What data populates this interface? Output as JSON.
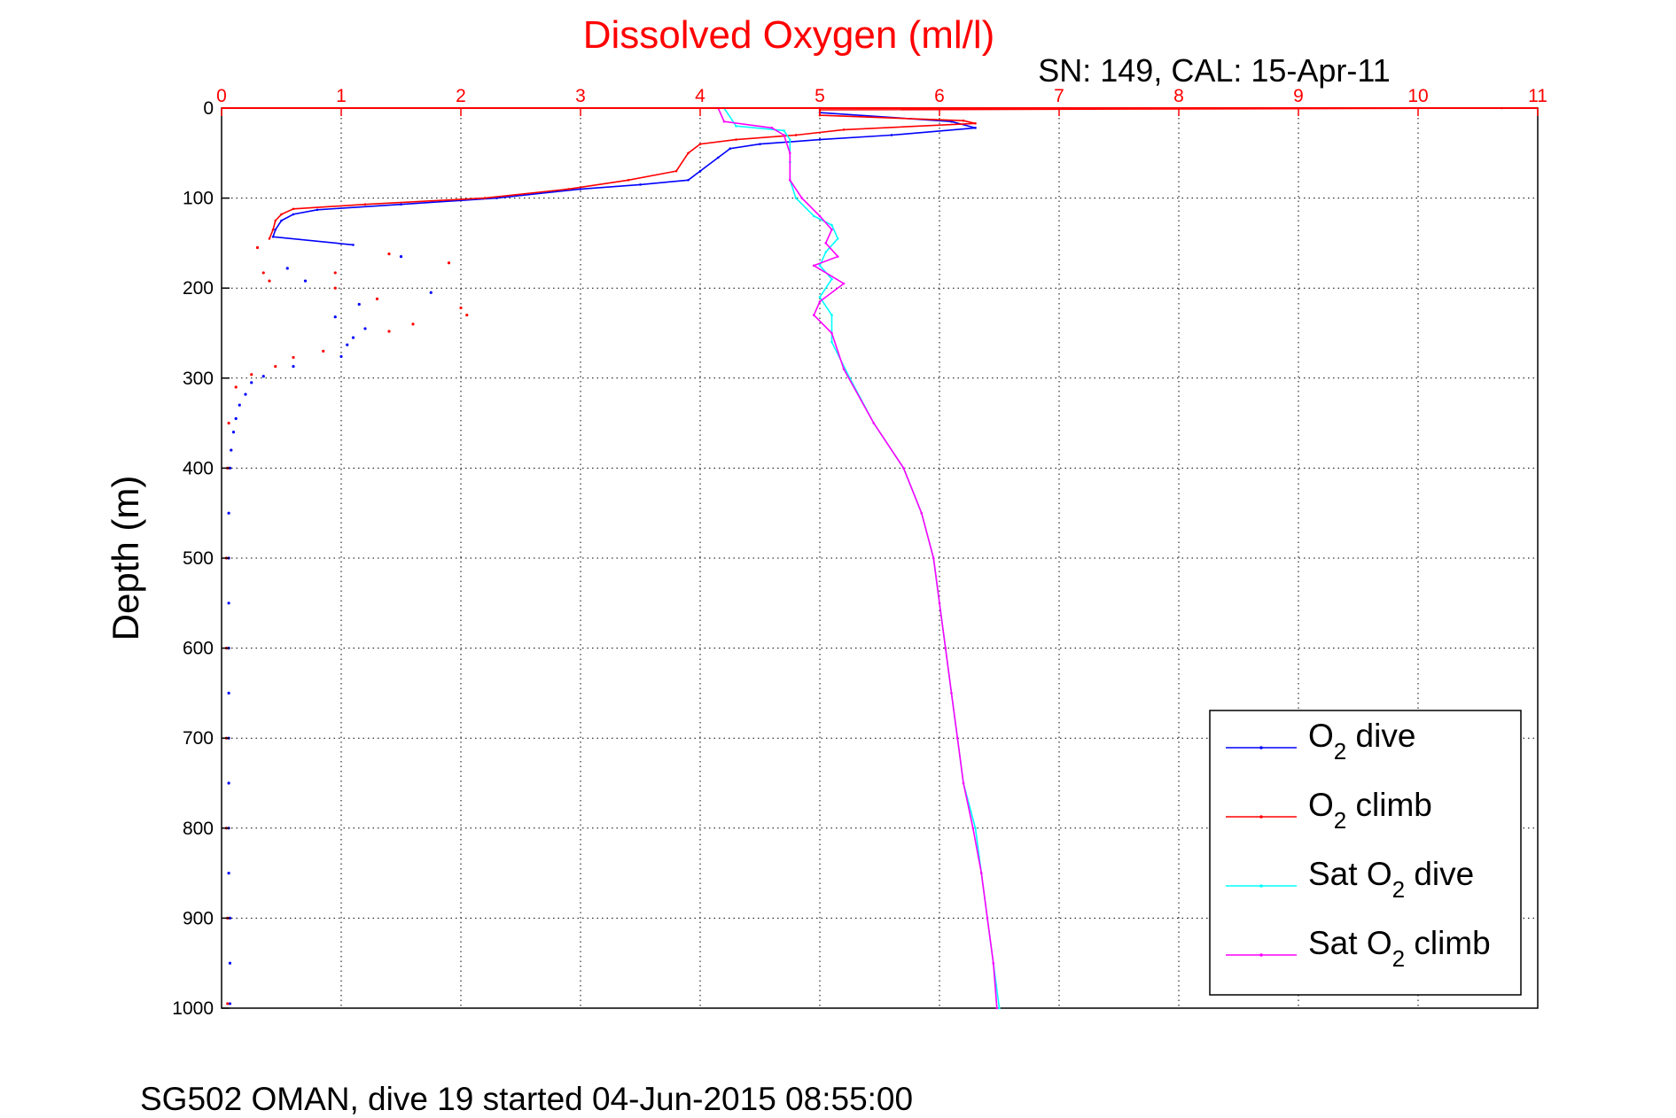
{
  "title": "Dissolved Oxygen (ml/l)",
  "subtitle": "SN: 149, CAL: 15-Apr-11",
  "footer": "SG502 OMAN, dive 19 started 04-Jun-2015 08:55:00",
  "colors": {
    "title": "#ff0000",
    "x_axis": "#ff0000",
    "o2_dive": "#0000ff",
    "o2_climb": "#ff0000",
    "sat_o2_dive": "#00ffff",
    "sat_o2_climb": "#ff00ff"
  },
  "legend": {
    "o2_dive": {
      "main": "O",
      "sub": "2",
      "tail": " dive"
    },
    "o2_climb": {
      "main": "O",
      "sub": "2",
      "tail": " climb"
    },
    "sat_o2_dive": {
      "main": "Sat O",
      "sub": "2",
      "tail": " dive"
    },
    "sat_o2_climb": {
      "main": "Sat O",
      "sub": "2",
      "tail": " climb"
    }
  },
  "chart_data": {
    "type": "line",
    "title": "Dissolved Oxygen (ml/l)",
    "ylabel": "Depth (m)",
    "xlabel": "",
    "xlim": [
      0,
      11
    ],
    "ylim": [
      0,
      1000
    ],
    "y_reversed": true,
    "x_axis_position": "top",
    "grid": true,
    "legend_position": "bottom-right",
    "x_ticks": [
      "0",
      "1",
      "2",
      "3",
      "4",
      "5",
      "6",
      "7",
      "8",
      "9",
      "10",
      "11"
    ],
    "y_ticks": [
      "0",
      "100",
      "200",
      "300",
      "400",
      "500",
      "600",
      "700",
      "800",
      "900",
      "1000"
    ],
    "series": [
      {
        "name": "O2 dive",
        "color": "#0000ff",
        "points": [
          [
            5.0,
            0
          ],
          [
            5.0,
            5
          ],
          [
            6.1,
            15
          ],
          [
            6.3,
            22
          ],
          [
            5.6,
            30
          ],
          [
            5.0,
            35
          ],
          [
            4.5,
            40
          ],
          [
            4.25,
            45
          ],
          [
            4.15,
            55
          ],
          [
            4.0,
            70
          ],
          [
            3.9,
            80
          ],
          [
            3.5,
            85
          ],
          [
            3.0,
            90
          ],
          [
            2.3,
            100
          ],
          [
            1.5,
            107
          ],
          [
            0.8,
            113
          ],
          [
            0.6,
            118
          ],
          [
            0.5,
            125
          ],
          [
            0.45,
            135
          ],
          [
            0.43,
            143
          ],
          [
            1.1,
            152
          ]
        ]
      },
      {
        "name": "O2 climb",
        "color": "#ff0000",
        "points": [
          [
            10.7,
            0
          ],
          [
            5.0,
            2
          ],
          [
            5.0,
            8
          ],
          [
            6.2,
            14
          ],
          [
            6.3,
            17
          ],
          [
            5.2,
            24
          ],
          [
            4.8,
            30
          ],
          [
            4.3,
            35
          ],
          [
            4.0,
            40
          ],
          [
            3.9,
            50
          ],
          [
            3.8,
            70
          ],
          [
            3.4,
            80
          ],
          [
            2.9,
            90
          ],
          [
            2.2,
            100
          ],
          [
            1.2,
            107
          ],
          [
            0.6,
            112
          ],
          [
            0.5,
            118
          ],
          [
            0.45,
            125
          ],
          [
            0.43,
            135
          ],
          [
            0.4,
            145
          ]
        ]
      },
      {
        "name": "Sat O2 dive",
        "color": "#00ffff",
        "points": [
          [
            4.2,
            0
          ],
          [
            4.3,
            20
          ],
          [
            4.7,
            25
          ],
          [
            4.75,
            35
          ],
          [
            4.75,
            60
          ],
          [
            4.75,
            80
          ],
          [
            4.8,
            100
          ],
          [
            4.95,
            120
          ],
          [
            5.1,
            130
          ],
          [
            5.15,
            145
          ],
          [
            5.05,
            160
          ],
          [
            5.0,
            175
          ],
          [
            5.1,
            190
          ],
          [
            5.0,
            210
          ],
          [
            5.1,
            230
          ],
          [
            5.1,
            260
          ],
          [
            5.25,
            300
          ],
          [
            5.45,
            350
          ],
          [
            5.7,
            400
          ],
          [
            5.85,
            450
          ],
          [
            5.95,
            500
          ],
          [
            6.0,
            550
          ],
          [
            6.05,
            600
          ],
          [
            6.1,
            650
          ],
          [
            6.15,
            700
          ],
          [
            6.2,
            750
          ],
          [
            6.3,
            800
          ],
          [
            6.35,
            850
          ],
          [
            6.4,
            900
          ],
          [
            6.45,
            950
          ],
          [
            6.5,
            1000
          ]
        ]
      },
      {
        "name": "Sat O2 climb",
        "color": "#ff00ff",
        "points": [
          [
            4.15,
            0
          ],
          [
            4.2,
            15
          ],
          [
            4.6,
            22
          ],
          [
            4.7,
            30
          ],
          [
            4.75,
            50
          ],
          [
            4.75,
            80
          ],
          [
            4.85,
            100
          ],
          [
            5.0,
            120
          ],
          [
            5.1,
            135
          ],
          [
            5.05,
            150
          ],
          [
            5.15,
            165
          ],
          [
            4.95,
            175
          ],
          [
            5.2,
            195
          ],
          [
            5.0,
            215
          ],
          [
            4.95,
            230
          ],
          [
            5.1,
            250
          ],
          [
            5.2,
            290
          ],
          [
            5.45,
            350
          ],
          [
            5.7,
            400
          ],
          [
            5.85,
            450
          ],
          [
            5.95,
            500
          ],
          [
            6.0,
            550
          ],
          [
            6.05,
            600
          ],
          [
            6.1,
            650
          ],
          [
            6.15,
            700
          ],
          [
            6.2,
            750
          ],
          [
            6.28,
            800
          ],
          [
            6.35,
            850
          ],
          [
            6.4,
            900
          ],
          [
            6.45,
            950
          ],
          [
            6.48,
            1000
          ]
        ]
      },
      {
        "name": "O2 dive scatter",
        "color": "#0000ff",
        "style": "dots",
        "points": [
          [
            0.55,
            178
          ],
          [
            0.7,
            192
          ],
          [
            1.5,
            165
          ],
          [
            1.75,
            205
          ],
          [
            1.15,
            218
          ],
          [
            0.95,
            232
          ],
          [
            1.2,
            245
          ],
          [
            1.1,
            255
          ],
          [
            1.05,
            263
          ],
          [
            1.0,
            276
          ],
          [
            0.6,
            287
          ],
          [
            0.35,
            298
          ],
          [
            0.25,
            305
          ],
          [
            0.2,
            318
          ],
          [
            0.15,
            330
          ],
          [
            0.12,
            345
          ],
          [
            0.1,
            360
          ],
          [
            0.08,
            380
          ],
          [
            0.07,
            400
          ],
          [
            0.06,
            450
          ],
          [
            0.06,
            500
          ],
          [
            0.06,
            550
          ],
          [
            0.06,
            600
          ],
          [
            0.06,
            650
          ],
          [
            0.06,
            700
          ],
          [
            0.06,
            750
          ],
          [
            0.06,
            800
          ],
          [
            0.06,
            850
          ],
          [
            0.07,
            900
          ],
          [
            0.07,
            950
          ],
          [
            0.07,
            995
          ]
        ]
      },
      {
        "name": "O2 climb scatter",
        "color": "#ff0000",
        "style": "dots",
        "points": [
          [
            0.3,
            155
          ],
          [
            0.35,
            183
          ],
          [
            0.4,
            192
          ],
          [
            0.95,
            183
          ],
          [
            1.4,
            162
          ],
          [
            1.9,
            172
          ],
          [
            0.95,
            200
          ],
          [
            1.3,
            212
          ],
          [
            2.0,
            222
          ],
          [
            2.05,
            230
          ],
          [
            1.4,
            248
          ],
          [
            1.6,
            240
          ],
          [
            0.85,
            270
          ],
          [
            0.6,
            277
          ],
          [
            0.45,
            287
          ],
          [
            0.25,
            296
          ],
          [
            0.12,
            310
          ],
          [
            0.06,
            350
          ],
          [
            0.05,
            400
          ],
          [
            0.04,
            500
          ],
          [
            0.04,
            600
          ],
          [
            0.04,
            700
          ],
          [
            0.04,
            800
          ],
          [
            0.05,
            900
          ],
          [
            0.05,
            995
          ]
        ]
      }
    ]
  }
}
